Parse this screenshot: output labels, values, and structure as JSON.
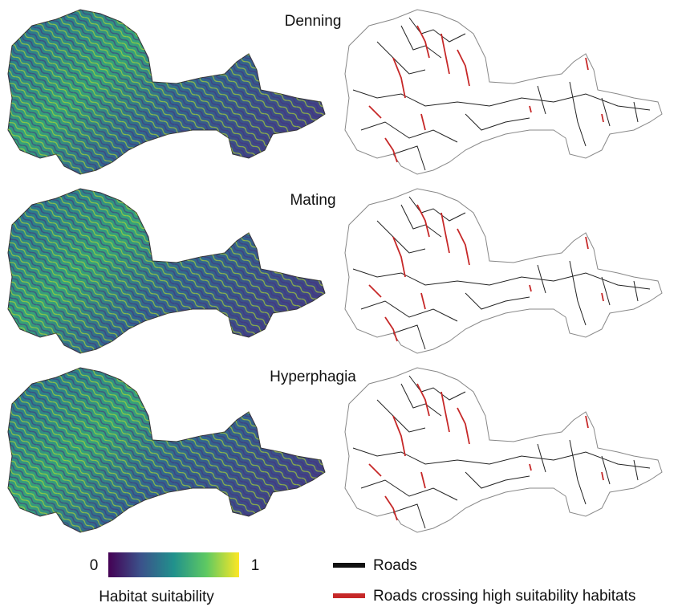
{
  "panels": [
    {
      "title": "Denning"
    },
    {
      "title": "Mating"
    },
    {
      "title": "Hyperphagia"
    }
  ],
  "colorbar": {
    "min_label": "0",
    "max_label": "1",
    "label": "Habitat suitability"
  },
  "legend": [
    {
      "label": "Roads"
    },
    {
      "label": "Roads crossing high suitability habitats"
    }
  ]
}
